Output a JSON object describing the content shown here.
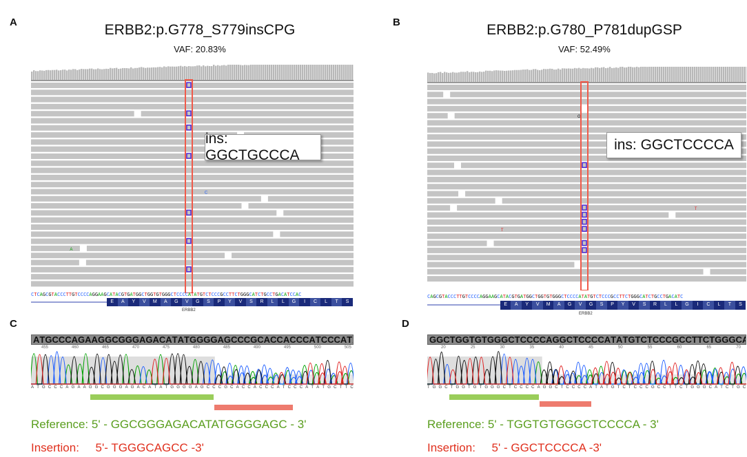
{
  "panels": {
    "A": {
      "label": "A",
      "title": "ERBB2:p.G778_S779insCPG",
      "vaf": "VAF: 20.83%",
      "ins_label": "ins: GGCTGCCCA",
      "ref_sequence": "CTCAGCGTACCCTTGTCCCCAGGAAGCATACGTGATGGCTGGTGTGGGCTCCCCATATGTCTCCCGCCTTCTGGGCATCTGCCTGACATCCAC",
      "amino_acids": [
        "E",
        "A",
        "Y",
        "V",
        "M",
        "A",
        "G",
        "V",
        "G",
        "S",
        "P",
        "Y",
        "V",
        "S",
        "R",
        "L",
        "L",
        "G",
        "I",
        "C",
        "L",
        "T",
        "S"
      ],
      "gene": "ERBB2"
    },
    "B": {
      "label": "B",
      "title": "ERBB2:p.G780_P781dupGSP",
      "vaf": "VAF: 52.49%",
      "ins_label": "ins: GGCTCCCCA",
      "ref_sequence": "CAGCGTACCCTTGTCCCCAGGAAGCATACGTGATGGCTGGTGTGGGCTCCCCATATGTCTCCCGCCTTCTGGGCATCTGCCTGACATC",
      "amino_acids": [
        "E",
        "A",
        "Y",
        "V",
        "M",
        "A",
        "G",
        "V",
        "G",
        "S",
        "P",
        "Y",
        "V",
        "S",
        "R",
        "L",
        "L",
        "G",
        "I",
        "C",
        "L",
        "T",
        "S"
      ],
      "gene": "ERBB2"
    },
    "C": {
      "label": "C",
      "sequence": "ATGCCCAGAAGGCGGGAGACATATGGGGAGCCCGCACCACCCATCCCATATGCTTC",
      "ticks": [
        "455",
        "460",
        "465",
        "470",
        "475",
        "480",
        "485",
        "490",
        "495",
        "500",
        "505"
      ],
      "reference": "Reference: 5' - GGCGGGAGACATATGGGGAGC - 3'",
      "insertion": "Insertion:     5'- TGGGCAGCC -3'"
    },
    "D": {
      "label": "D",
      "sequence": "GGCTGGTGTGGGCTCCCCAGGCTCCCCATATGTCTCCCGCCTTCTGGGCATCTGC",
      "bottom_sequence": "TGGCTGGTGTGGGCTCCCCAGGCTCCCCATATGTCTCCCGCCTTCTGGGCATCTGC",
      "ticks": [
        "20",
        "25",
        "30",
        "35",
        "40",
        "45",
        "50",
        "55",
        "60",
        "65",
        "70"
      ],
      "reference": "Reference: 5' - TGGTGTGGGCTCCCCA - 3'",
      "insertion": "Insertion:     5' - GGCTCCCCA -3'"
    }
  },
  "colors": {
    "A": "#00a000",
    "C": "#1f5fff",
    "G": "#111111",
    "T": "#e02020",
    "reference_bar": "#9acd5a",
    "insertion_bar": "#ee7b6e",
    "reference_text": "#5a9e1e",
    "insertion_text": "#e0301e",
    "highlight_box": "#f05a4a",
    "insertion_marker": "#4b2ad8"
  }
}
